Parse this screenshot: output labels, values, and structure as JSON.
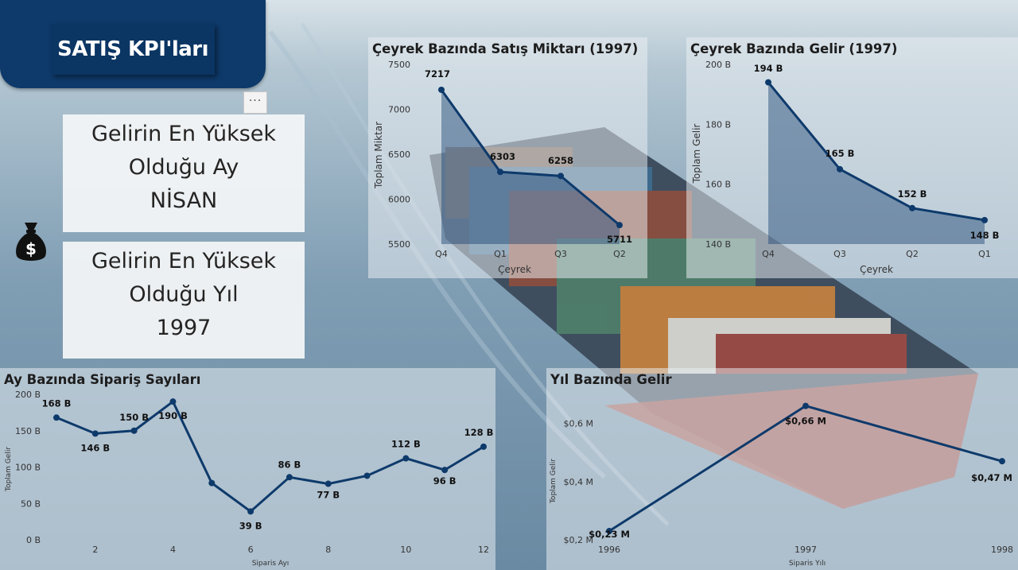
{
  "header": {
    "title": "SATIŞ KPI'ları",
    "more_label": "···"
  },
  "kpi_month": {
    "line1": "Gelirin En Yüksek",
    "line2": "Olduğu Ay",
    "value": "NİSAN"
  },
  "kpi_year": {
    "line1": "Gelirin En Yüksek",
    "line2": "Olduğu Yıl",
    "value": "1997"
  },
  "icons": {
    "money": "money-bag-icon"
  },
  "colors": {
    "title_bg": "#0e3a6b",
    "series": "#0e3a6b"
  },
  "chart_data": [
    {
      "id": "q_qty",
      "type": "area",
      "title": "Çeyrek Bazında Satış Miktarı (1997)",
      "xlabel": "Çeyrek",
      "ylabel": "Toplam Miktar",
      "categories": [
        "Q4",
        "Q1",
        "Q3",
        "Q2"
      ],
      "values": [
        7217,
        6303,
        6258,
        5711
      ],
      "data_labels": [
        "7217",
        "6303",
        "6258",
        "5711"
      ],
      "ylim": [
        5500,
        7500
      ],
      "yticks": [
        7500,
        7000,
        6500,
        6000,
        5500
      ],
      "ytick_labels": [
        "7500",
        "7000",
        "6500",
        "6000",
        "5500"
      ]
    },
    {
      "id": "q_rev",
      "type": "area",
      "title": "Çeyrek Bazında Gelir (1997)",
      "xlabel": "Çeyrek",
      "ylabel": "Toplam Gelir",
      "categories": [
        "Q4",
        "Q3",
        "Q2",
        "Q1"
      ],
      "values": [
        194,
        165,
        152,
        148
      ],
      "data_labels": [
        "194 B",
        "165 B",
        "152 B",
        "148 B"
      ],
      "ylim": [
        140,
        200
      ],
      "yticks": [
        200,
        180,
        160,
        140
      ],
      "ytick_labels": [
        "200 B",
        "180 B",
        "160 B",
        "140 B"
      ]
    },
    {
      "id": "m_orders",
      "type": "line",
      "title": "Ay Bazında Sipariş Sayıları",
      "xlabel": "Siparis Ayı",
      "ylabel": "Toplam Gelir",
      "x": [
        1,
        2,
        3,
        4,
        5,
        6,
        7,
        8,
        9,
        10,
        11,
        12
      ],
      "values": [
        168,
        146,
        150,
        190,
        78,
        39,
        86,
        77,
        88,
        112,
        96,
        128
      ],
      "data_labels": [
        "168 B",
        "146 B",
        "150 B",
        "190 B",
        "",
        "39 B",
        "86 B",
        "77 B",
        "",
        "112 B",
        "96 B",
        "128 B"
      ],
      "xticks": [
        2,
        4,
        6,
        8,
        10,
        12
      ],
      "ylim": [
        0,
        200
      ],
      "yticks": [
        200,
        150,
        100,
        50,
        0
      ],
      "ytick_labels": [
        "200 B",
        "150 B",
        "100 B",
        "50 B",
        "0 B"
      ]
    },
    {
      "id": "y_rev",
      "type": "line",
      "title": "Yıl Bazında Gelir",
      "xlabel": "Siparis Yılı",
      "ylabel": "Toplam Gelir",
      "x": [
        1996,
        1997,
        1998
      ],
      "values": [
        0.23,
        0.66,
        0.47
      ],
      "data_labels": [
        "$0,23 M",
        "$0,66 M",
        "$0,47 M"
      ],
      "ylim": [
        0.2,
        0.7
      ],
      "yticks": [
        0.6,
        0.4,
        0.2
      ],
      "ytick_labels": [
        "$0,6 M",
        "$0,4 M",
        "$0,2 M"
      ]
    }
  ]
}
